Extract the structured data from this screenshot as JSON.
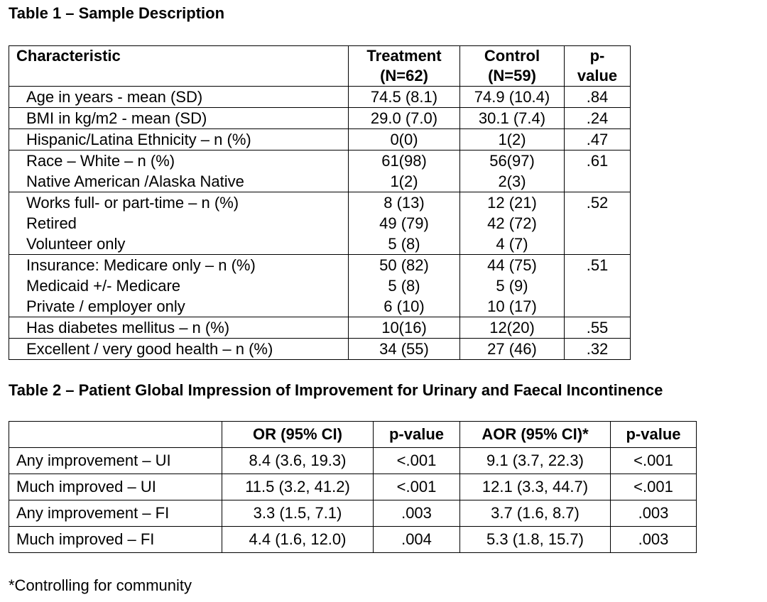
{
  "table1": {
    "title": "Table 1 – Sample Description",
    "headers": {
      "characteristic": "Characteristic",
      "treatment_line1": "Treatment",
      "treatment_line2": "(N=62)",
      "control_line1": "Control",
      "control_line2": "(N=59)",
      "pvalue_line1": "p-",
      "pvalue_line2": "value"
    },
    "rows": [
      {
        "labels": [
          "Age in years - mean (SD)"
        ],
        "treatment": [
          "74.5 (8.1)"
        ],
        "control": [
          "74.9 (10.4)"
        ],
        "pvalue": ".84"
      },
      {
        "labels": [
          "BMI in kg/m2 - mean (SD)"
        ],
        "treatment": [
          "29.0 (7.0)"
        ],
        "control": [
          "30.1 (7.4)"
        ],
        "pvalue": ".24"
      },
      {
        "labels": [
          "Hispanic/Latina Ethnicity – n (%)"
        ],
        "treatment": [
          "0(0)"
        ],
        "control": [
          "1(2)"
        ],
        "pvalue": ".47"
      },
      {
        "labels": [
          "Race – White – n (%)",
          "Native American /Alaska Native"
        ],
        "treatment": [
          "61(98)",
          "1(2)"
        ],
        "control": [
          "56(97)",
          "2(3)"
        ],
        "pvalue": ".61"
      },
      {
        "labels": [
          "Works full- or part-time – n (%)",
          "Retired",
          "Volunteer only"
        ],
        "treatment": [
          "8 (13)",
          "49 (79)",
          "5 (8)"
        ],
        "control": [
          "12 (21)",
          "42 (72)",
          "4 (7)"
        ],
        "pvalue": ".52"
      },
      {
        "labels": [
          "Insurance: Medicare only – n (%)",
          "Medicaid +/- Medicare",
          "Private / employer only"
        ],
        "treatment": [
          "50 (82)",
          "5 (8)",
          "6 (10)"
        ],
        "control": [
          "44 (75)",
          "5 (9)",
          "10 (17)"
        ],
        "pvalue": ".51"
      },
      {
        "labels": [
          "Has diabetes mellitus – n (%)"
        ],
        "treatment": [
          "10(16)"
        ],
        "control": [
          "12(20)"
        ],
        "pvalue": ".55"
      },
      {
        "labels": [
          "Excellent / very good health – n (%)"
        ],
        "treatment": [
          "34 (55)"
        ],
        "control": [
          "27 (46)"
        ],
        "pvalue": ".32"
      }
    ]
  },
  "table2": {
    "title": "Table 2 – Patient Global Impression of Improvement for Urinary and Faecal Incontinence",
    "headers": [
      "",
      "OR (95% CI)",
      "p-value",
      "AOR (95% CI)*",
      "p-value"
    ],
    "rows": [
      [
        "Any improvement – UI",
        "8.4 (3.6, 19.3)",
        "<.001",
        "9.1 (3.7, 22.3)",
        "<.001"
      ],
      [
        "Much improved – UI",
        "11.5 (3.2, 41.2)",
        "<.001",
        "12.1 (3.3, 44.7)",
        "<.001"
      ],
      [
        "Any improvement – FI",
        "3.3 (1.5, 7.1)",
        ".003",
        "3.7 (1.6, 8.7)",
        ".003"
      ],
      [
        "Much improved – FI",
        "4.4 (1.6, 12.0)",
        ".004",
        "5.3 (1.8, 15.7)",
        ".003"
      ]
    ]
  },
  "footnote": "*Controlling for community"
}
